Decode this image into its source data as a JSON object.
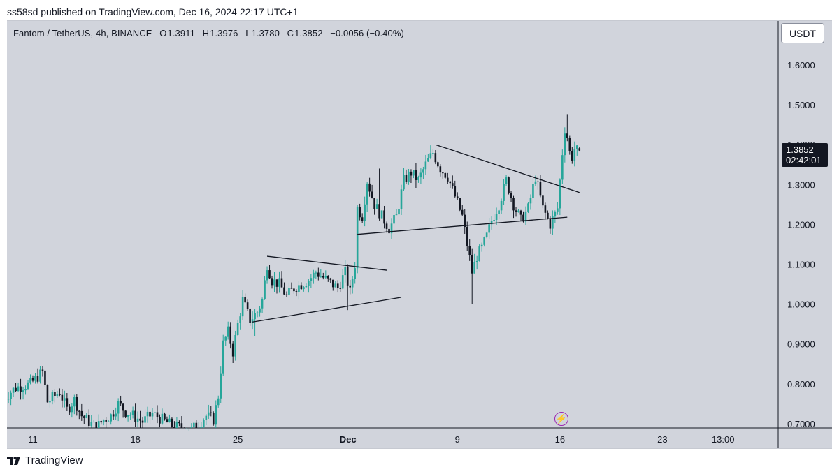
{
  "publish_info": "ss58sd published on TradingView.com, Dec 16, 2024 22:17 UTC+1",
  "header": {
    "symbol": "Fantom / TetherUS, 4h, BINANCE",
    "open_label": "O",
    "open": "1.3911",
    "high_label": "H",
    "high": "1.3976",
    "low_label": "L",
    "low": "1.3780",
    "close_label": "C",
    "close": "1.3852",
    "change": "−0.0056 (−0.40%)"
  },
  "currency_button": "USDT",
  "last_price": {
    "price": "1.3852",
    "countdown": "02:42:01"
  },
  "brand": "TradingView",
  "colors": {
    "up": "#26a69a",
    "down": "#131722",
    "background": "#d1d4dc",
    "flash": "#9c27b0"
  },
  "chart_data": {
    "type": "candlestick",
    "x_ticks": [
      "11",
      "18",
      "25",
      "Dec",
      "9",
      "16",
      "23",
      "13:00"
    ],
    "y_ticks": [
      "1.6000",
      "1.5000",
      "1.4000",
      "1.3000",
      "1.2000",
      "1.1000",
      "1.0000",
      "0.9000",
      "0.8000",
      "0.7000"
    ],
    "ylim": [
      0.685,
      1.67
    ],
    "x_range_days": [
      "Nov 9",
      "Dec 27"
    ],
    "trendlines": [
      {
        "name": "triangle-upper",
        "from": [
          "Nov 27 00:00",
          1.12
        ],
        "to": [
          "Dec 4 04:00",
          1.085
        ]
      },
      {
        "name": "triangle-lower",
        "from": [
          "Nov 26 00:00",
          0.955
        ],
        "to": [
          "Dec 5 04:00",
          1.017
        ]
      },
      {
        "name": "wedge-upper",
        "from": [
          "Dec 7 12:00",
          1.4
        ],
        "to": [
          "Dec 17 08:00",
          1.28
        ]
      },
      {
        "name": "wedge-lower",
        "from": [
          "Dec 2 04:00",
          1.175
        ],
        "to": [
          "Dec 16 12:00",
          1.218
        ]
      }
    ],
    "anchors": [
      [
        "Nov 9 00:00",
        0.76
      ],
      [
        "Nov 10 00:00",
        0.79
      ],
      [
        "Nov 11 00:00",
        0.8
      ],
      [
        "Nov 11 20:00",
        0.83
      ],
      [
        "Nov 12 04:00",
        0.755
      ],
      [
        "Nov 12 16:00",
        0.77
      ],
      [
        "Nov 13 00:00",
        0.78
      ],
      [
        "Nov 13 12:00",
        0.735
      ],
      [
        "Nov 14 00:00",
        0.76
      ],
      [
        "Nov 14 12:00",
        0.72
      ],
      [
        "Nov 15 00:00",
        0.705
      ],
      [
        "Nov 15 12:00",
        0.69
      ],
      [
        "Nov 16 00:00",
        0.71
      ],
      [
        "Nov 16 12:00",
        0.72
      ],
      [
        "Nov 17 00:00",
        0.75
      ],
      [
        "Nov 17 12:00",
        0.73
      ],
      [
        "Nov 18 00:00",
        0.72
      ],
      [
        "Nov 18 16:00",
        0.705
      ],
      [
        "Nov 19 08:00",
        0.725
      ],
      [
        "Nov 20 00:00",
        0.71
      ],
      [
        "Nov 20 16:00",
        0.695
      ],
      [
        "Nov 21 08:00",
        0.69
      ],
      [
        "Nov 22 00:00",
        0.685
      ],
      [
        "Nov 22 12:00",
        0.7
      ],
      [
        "Nov 23 00:00",
        0.72
      ],
      [
        "Nov 23 12:00",
        0.71
      ],
      [
        "Nov 23 20:00",
        0.77
      ],
      [
        "Nov 24 04:00",
        0.9
      ],
      [
        "Nov 24 12:00",
        0.93
      ],
      [
        "Nov 24 20:00",
        0.88
      ],
      [
        "Nov 25 04:00",
        0.95
      ],
      [
        "Nov 25 12:00",
        1.01
      ],
      [
        "Nov 26 00:00",
        0.96
      ],
      [
        "Nov 26 12:00",
        0.98
      ],
      [
        "Nov 26 20:00",
        1.01
      ],
      [
        "Nov 27 04:00",
        1.1
      ],
      [
        "Nov 27 12:00",
        1.06
      ],
      [
        "Nov 28 00:00",
        1.05
      ],
      [
        "Nov 28 12:00",
        1.02
      ],
      [
        "Nov 29 00:00",
        1.04
      ],
      [
        "Nov 29 12:00",
        1.05
      ],
      [
        "Nov 30 00:00",
        1.06
      ],
      [
        "Nov 30 12:00",
        1.08
      ],
      [
        "Dec 1 00:00",
        1.04
      ],
      [
        "Dec 1 12:00",
        1.08
      ],
      [
        "Dec 1 20:00",
        1.03
      ],
      [
        "Dec 2 04:00",
        1.1
      ],
      [
        "Dec 2 08:00",
        1.24
      ],
      [
        "Dec 2 16:00",
        1.22
      ],
      [
        "Dec 3 00:00",
        1.31
      ],
      [
        "Dec 3 12:00",
        1.25
      ],
      [
        "Dec 4 00:00",
        1.22
      ],
      [
        "Dec 4 12:00",
        1.19
      ],
      [
        "Dec 5 00:00",
        1.22
      ],
      [
        "Dec 5 12:00",
        1.31
      ],
      [
        "Dec 6 00:00",
        1.33
      ],
      [
        "Dec 6 12:00",
        1.31
      ],
      [
        "Dec 7 00:00",
        1.35
      ],
      [
        "Dec 7 12:00",
        1.38
      ],
      [
        "Dec 8 00:00",
        1.34
      ],
      [
        "Dec 8 12:00",
        1.32
      ],
      [
        "Dec 9 00:00",
        1.27
      ],
      [
        "Dec 9 12:00",
        1.22
      ],
      [
        "Dec 9 20:00",
        1.15
      ],
      [
        "Dec 10 04:00",
        1.08
      ],
      [
        "Dec 10 12:00",
        1.12
      ],
      [
        "Dec 10 20:00",
        1.14
      ],
      [
        "Dec 11 04:00",
        1.17
      ],
      [
        "Dec 11 12:00",
        1.21
      ],
      [
        "Dec 12 00:00",
        1.25
      ],
      [
        "Dec 12 12:00",
        1.31
      ],
      [
        "Dec 13 00:00",
        1.25
      ],
      [
        "Dec 13 12:00",
        1.21
      ],
      [
        "Dec 14 00:00",
        1.24
      ],
      [
        "Dec 14 12:00",
        1.32
      ],
      [
        "Dec 15 00:00",
        1.24
      ],
      [
        "Dec 15 12:00",
        1.2
      ],
      [
        "Dec 16 00:00",
        1.24
      ],
      [
        "Dec 16 04:00",
        1.31
      ],
      [
        "Dec 16 08:00",
        1.38
      ],
      [
        "Dec 16 12:00",
        1.44
      ],
      [
        "Dec 16 16:00",
        1.42
      ],
      [
        "Dec 16 20:00",
        1.38
      ],
      [
        "Dec 17 00:00",
        1.37
      ],
      [
        "Dec 17 04:00",
        1.39
      ],
      [
        "Dec 17 08:00",
        1.3852
      ]
    ],
    "wicks": [
      [
        "Dec 10 00:00",
        1.0
      ],
      [
        "Dec 16 12:00",
        1.475
      ],
      [
        "Dec 1 12:00",
        0.985
      ],
      [
        "Nov 26 04:00",
        0.92
      ],
      [
        "Dec 3 16:00",
        1.34
      ]
    ]
  }
}
